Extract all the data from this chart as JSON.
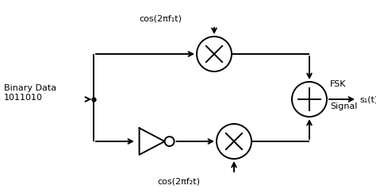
{
  "bg_color": "#ffffff",
  "line_color": "#000000",
  "text_color": "#000000",
  "figsize": [
    4.74,
    2.43
  ],
  "dpi": 100,
  "binary_data_label": "Binary Data\n1011010",
  "cos1_label": "cos(2πf₁t)",
  "cos2_label": "cos(2πf₂t)",
  "fsk_label1": "FSK",
  "fsk_label2": "Signal",
  "output_label": "s₁(t)"
}
